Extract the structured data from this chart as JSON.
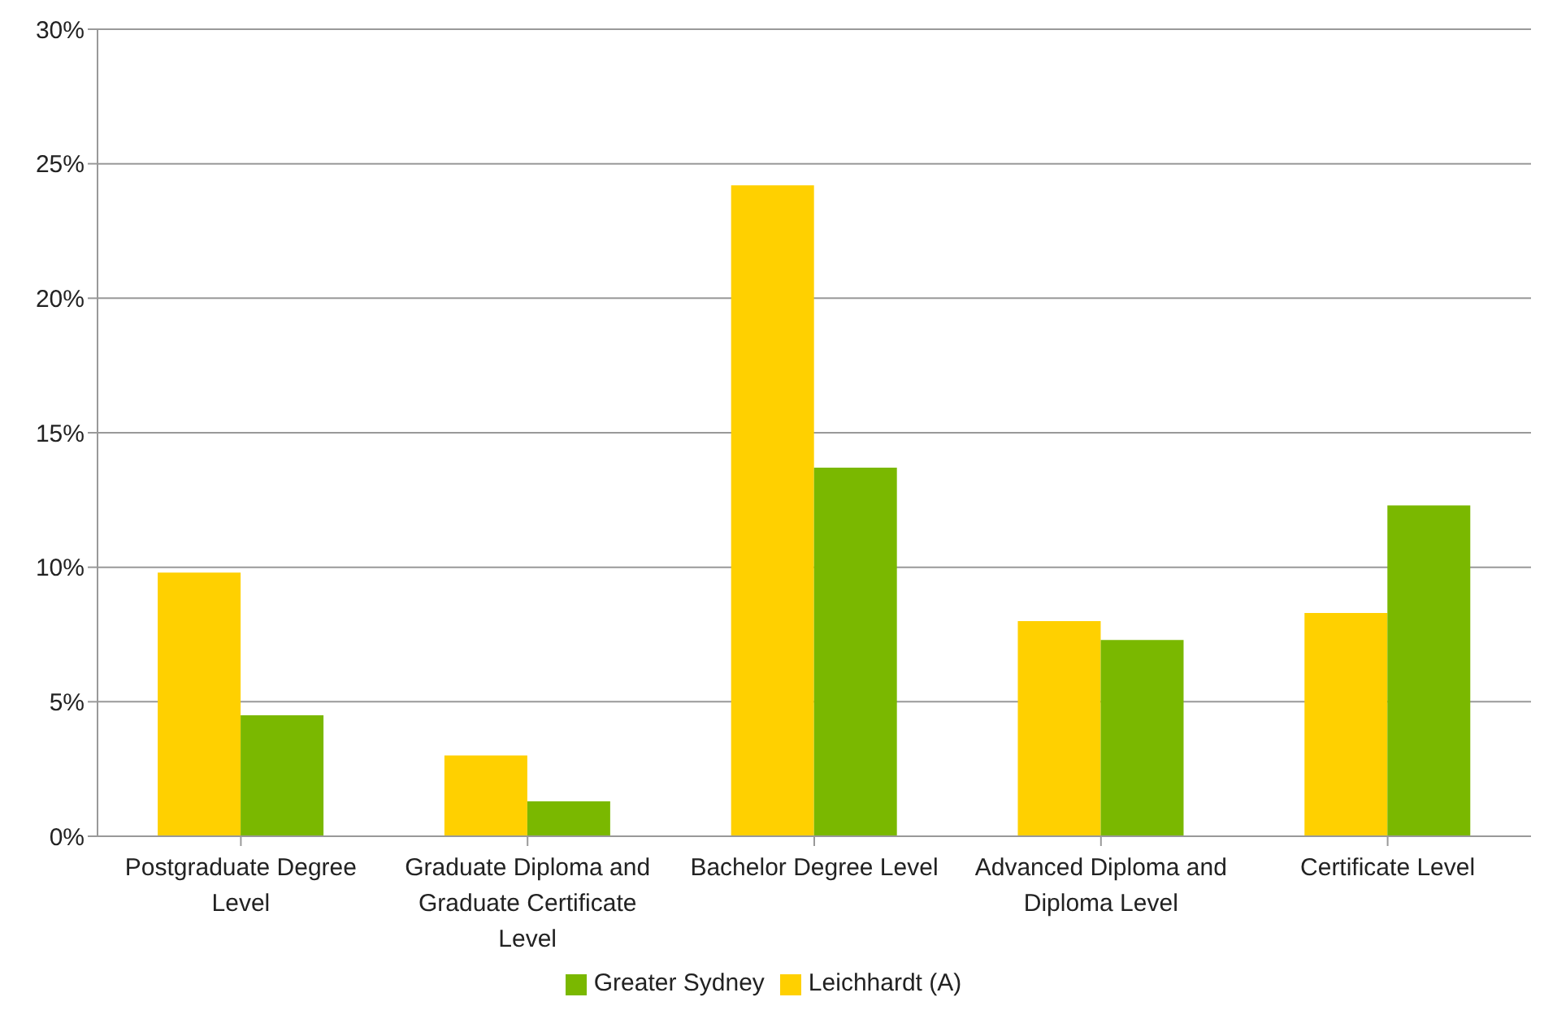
{
  "chart_data": {
    "type": "bar",
    "categories": [
      "Postgraduate Degree Level",
      "Graduate Diploma and Graduate Certificate Level",
      "Bachelor Degree Level",
      "Advanced Diploma and Diploma Level",
      "Certificate Level"
    ],
    "series": [
      {
        "name": "Leichhardt (A)",
        "color": "#ffd000",
        "values": [
          9.8,
          3.0,
          24.2,
          8.0,
          8.3
        ]
      },
      {
        "name": "Greater Sydney",
        "color": "#7ab800",
        "values": [
          4.5,
          1.3,
          13.7,
          7.3,
          12.3
        ]
      }
    ],
    "ylim": [
      0,
      30
    ],
    "yticks": [
      {
        "value": 0,
        "label": "0%"
      },
      {
        "value": 5,
        "label": "5%"
      },
      {
        "value": 10,
        "label": "10%"
      },
      {
        "value": 15,
        "label": "15%"
      },
      {
        "value": 20,
        "label": "20%"
      },
      {
        "value": 25,
        "label": "25%"
      },
      {
        "value": 30,
        "label": "30%"
      }
    ],
    "grid": "y",
    "legend": "bottom"
  }
}
